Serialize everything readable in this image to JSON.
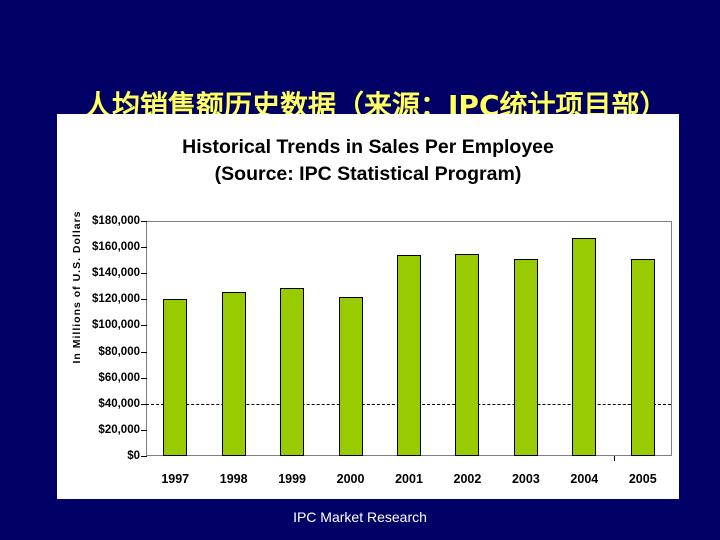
{
  "slide": {
    "title": "人均销售额历史数据（来源：IPC统计项目部）",
    "footer": "IPC Market Research",
    "background_color": "#000066",
    "title_color": "#ffff66"
  },
  "chart_data": {
    "type": "bar",
    "title": "Historical Trends in Sales Per Employee",
    "subtitle": "(Source: IPC Statistical Program)",
    "xlabel": "",
    "ylabel": "In Millions of U.S. Dollars",
    "categories": [
      "1997",
      "1998",
      "1999",
      "2000",
      "2001",
      "2002",
      "2003",
      "2004",
      "2005"
    ],
    "values": [
      120000,
      126000,
      129000,
      122000,
      154000,
      155000,
      151000,
      167000,
      151000
    ],
    "ylim": [
      0,
      180000
    ],
    "yticks": [
      "$180,000",
      "$160,000",
      "$140,000",
      "$120,000",
      "$100,000",
      "$80,000",
      "$60,000",
      "$40,000",
      "$20,000",
      "$0"
    ],
    "reference_line": {
      "value": 40000,
      "style": "dashed"
    },
    "bar_color": "#99cc00",
    "grid": false,
    "legend": null
  }
}
